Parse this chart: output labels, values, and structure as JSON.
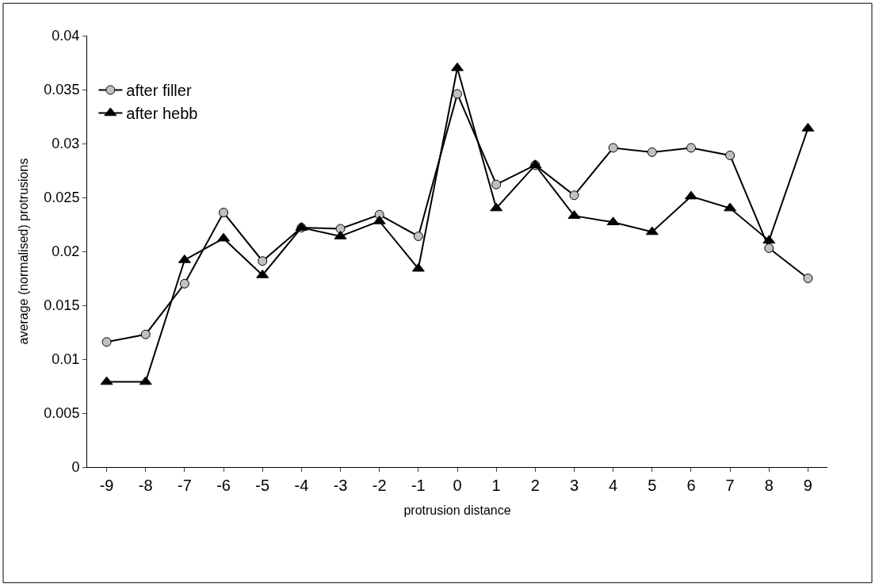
{
  "chart_data": {
    "type": "line",
    "xlabel": "protrusion distance",
    "ylabel": "average (normalised) protrusions",
    "categories": [
      "-9",
      "-8",
      "-7",
      "-6",
      "-5",
      "-4",
      "-3",
      "-2",
      "-1",
      "0",
      "1",
      "2",
      "3",
      "4",
      "5",
      "6",
      "7",
      "8",
      "9"
    ],
    "series": [
      {
        "name": "after filler",
        "color": "#c0c0c0",
        "marker": "circle",
        "values": [
          0.0116,
          0.0123,
          0.017,
          0.0236,
          0.0191,
          0.0222,
          0.0221,
          0.0234,
          0.0214,
          0.0346,
          0.0262,
          0.028,
          0.0252,
          0.0296,
          0.0292,
          0.0296,
          0.0289,
          0.0203,
          0.0175
        ]
      },
      {
        "name": "after hebb",
        "color": "#000000",
        "marker": "triangle",
        "values": [
          0.0079,
          0.0079,
          0.0192,
          0.0212,
          0.0178,
          0.0222,
          0.0214,
          0.0228,
          0.0184,
          0.037,
          0.024,
          0.028,
          0.0233,
          0.0227,
          0.0218,
          0.0251,
          0.024,
          0.021,
          0.0314
        ]
      }
    ],
    "ylim": [
      0,
      0.04
    ],
    "yticks": [
      0,
      0.005,
      0.01,
      0.015,
      0.02,
      0.025,
      0.03,
      0.035,
      0.04
    ],
    "legend": "top left",
    "line_style": "solid"
  }
}
